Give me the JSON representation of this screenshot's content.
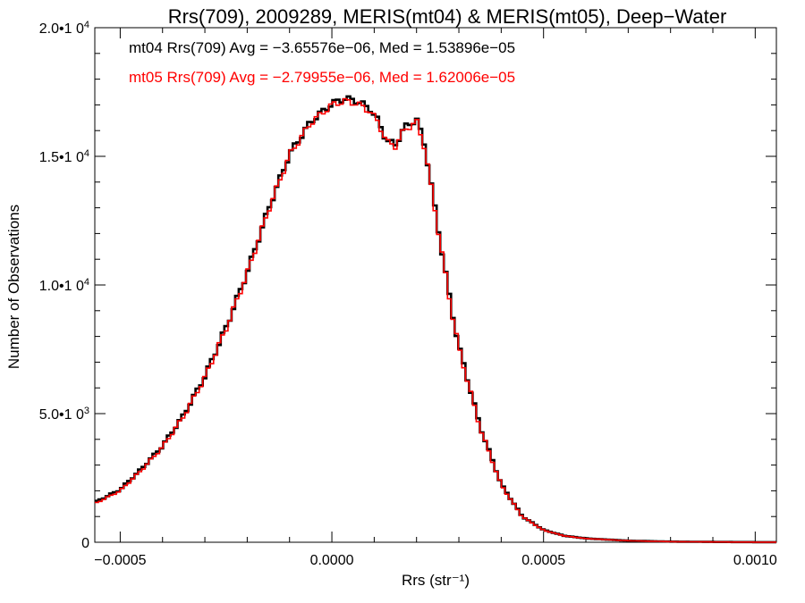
{
  "chart_data": {
    "type": "line",
    "title": "Rrs(709), 2009289, MERIS(mt04) & MERIS(mt05), Deep−Water",
    "xlabel": "Rrs (str⁻¹)",
    "ylabel": "Number of Observations",
    "xlim": [
      -0.00056,
      0.00105
    ],
    "ylim": [
      0,
      20000
    ],
    "grid": false,
    "x_ticks": [
      {
        "value": -0.0005,
        "label": "−0.0005"
      },
      {
        "value": 0.0,
        "label": "0.0000"
      },
      {
        "value": 0.0005,
        "label": "0.0005"
      },
      {
        "value": 0.001,
        "label": "0.0010"
      }
    ],
    "y_ticks": [
      {
        "value": 0,
        "label": "0",
        "sup": ""
      },
      {
        "value": 5000,
        "label": "5.0•1 0",
        "sup": "3"
      },
      {
        "value": 10000,
        "label": "1.0•1 0",
        "sup": "4"
      },
      {
        "value": 15000,
        "label": "1.5•1 0",
        "sup": "4"
      },
      {
        "value": 20000,
        "label": "2.0•1 0",
        "sup": "4"
      }
    ],
    "legend": {
      "placement": "top-left",
      "entries": [
        {
          "text": "mt04 Rrs(709) Avg = −3.65576e−06, Med = 1.53896e−05",
          "color": "#000000"
        },
        {
          "text": "mt05 Rrs(709) Avg = −2.79955e−06, Med = 1.62006e−05",
          "color": "#ff0000"
        }
      ]
    },
    "x": [
      -0.00056,
      -0.0005,
      -0.00045,
      -0.0004,
      -0.00035,
      -0.0003,
      -0.00025,
      -0.0002,
      -0.00015,
      -0.0001,
      -5e-05,
      0.0,
      3e-05,
      6e-05,
      9e-05,
      0.00011,
      0.00013,
      0.00015,
      0.00017,
      0.0002,
      0.00022,
      0.00025,
      0.00028,
      0.0003,
      0.00035,
      0.0004,
      0.00045,
      0.0005,
      0.00055,
      0.0006,
      0.0007,
      0.0008,
      0.0009,
      0.001,
      0.00105
    ],
    "series": [
      {
        "name": "mt04",
        "color": "#000000",
        "values": [
          1550,
          2050,
          2850,
          3750,
          4950,
          6450,
          8350,
          10500,
          12950,
          15100,
          16350,
          17050,
          17250,
          17150,
          16850,
          16350,
          15600,
          15450,
          16100,
          16450,
          15400,
          12300,
          9300,
          7600,
          4500,
          2250,
          1000,
          480,
          250,
          150,
          60,
          25,
          12,
          5,
          3
        ]
      },
      {
        "name": "mt05",
        "color": "#ff0000",
        "values": [
          1500,
          2000,
          2800,
          3700,
          4900,
          6400,
          8300,
          10450,
          12900,
          15050,
          16300,
          17000,
          17150,
          17050,
          16750,
          16300,
          15550,
          15400,
          16000,
          16350,
          15300,
          12250,
          9250,
          7550,
          4450,
          2220,
          990,
          470,
          245,
          145,
          58,
          24,
          11,
          5,
          3
        ]
      }
    ]
  }
}
